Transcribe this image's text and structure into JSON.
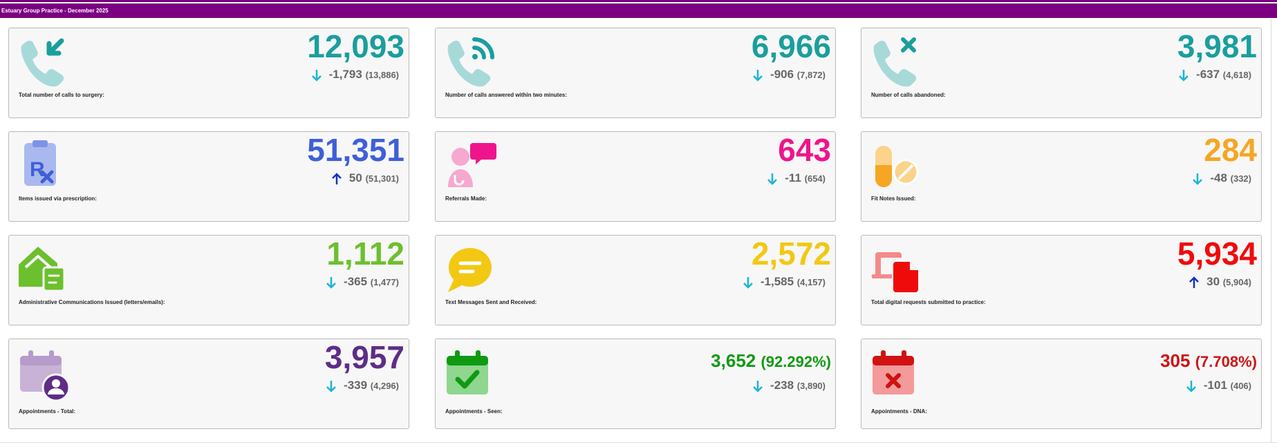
{
  "header": {
    "title": "Estuary Group Practice - December 2025"
  },
  "colors": {
    "purple": "#7b0081",
    "teal": "#1a9e9e",
    "down_arrow": "#17b6d6",
    "up_arrow": "#1030c8"
  },
  "cards": [
    {
      "id": "calls-total",
      "value": "12,093",
      "delta": "-1,793",
      "previous": "(13,886)",
      "direction": "down",
      "label": "Total number of calls to surgery:",
      "icon": "phone-incoming-icon",
      "color": "#1a9e9e"
    },
    {
      "id": "calls-answered",
      "value": "6,966",
      "delta": "-906",
      "previous": "(7,872)",
      "direction": "down",
      "label": "Number of calls answered within two minutes:",
      "icon": "phone-answered-icon",
      "color": "#1a9e9e"
    },
    {
      "id": "calls-abandoned",
      "value": "3,981",
      "delta": "-637",
      "previous": "(4,618)",
      "direction": "down",
      "label": "Number of calls abandoned:",
      "icon": "phone-missed-icon",
      "color": "#1a9e9e"
    },
    {
      "id": "prescriptions",
      "value": "51,351",
      "delta": "50",
      "previous": "(51,301)",
      "direction": "up",
      "label": "Items issued via prescription:",
      "icon": "prescription-icon",
      "color": "#3f5fd8"
    },
    {
      "id": "referrals",
      "value": "643",
      "delta": "-11",
      "previous": "(654)",
      "direction": "down",
      "label": "Referrals Made:",
      "icon": "doctor-chat-icon",
      "color": "#f0148c"
    },
    {
      "id": "fit-notes",
      "value": "284",
      "delta": "-48",
      "previous": "(332)",
      "direction": "down",
      "label": "Fit Notes Issued:",
      "icon": "pills-icon",
      "color": "#f5a623"
    },
    {
      "id": "admin-comms",
      "value": "1,112",
      "delta": "-365",
      "previous": "(1,477)",
      "direction": "down",
      "label": "Administrative Communications Issued (letters/emails):",
      "icon": "envelope-open-icon",
      "color": "#6cc02e"
    },
    {
      "id": "text-messages",
      "value": "2,572",
      "delta": "-1,585",
      "previous": "(4,157)",
      "direction": "down",
      "label": "Text Messages Sent and Received:",
      "icon": "message-bubble-icon",
      "color": "#f2c813"
    },
    {
      "id": "digital-requests",
      "value": "5,934",
      "delta": "30",
      "previous": "(5,904)",
      "direction": "up",
      "label": "Total digital requests submitted to practice:",
      "icon": "laptop-document-icon",
      "color": "#f00b0b"
    },
    {
      "id": "appointments-total",
      "value": "3,957",
      "pct": "",
      "delta": "-339",
      "previous": "(4,296)",
      "direction": "down",
      "label": "Appointments - Total:",
      "icon": "calendar-user-icon",
      "color": "#5e2d86"
    },
    {
      "id": "appointments-seen",
      "value": "3,652",
      "pct": "(92.292%)",
      "delta": "-238",
      "previous": "(3,890)",
      "direction": "down",
      "label": "Appointments - Seen:",
      "icon": "calendar-check-icon",
      "color": "#0f9a12"
    },
    {
      "id": "appointments-dna",
      "value": "305",
      "pct": "(7.708%)",
      "delta": "-101",
      "previous": "(406)",
      "direction": "down",
      "label": "Appointments - DNA:",
      "icon": "calendar-cross-icon",
      "color": "#d01212"
    }
  ]
}
